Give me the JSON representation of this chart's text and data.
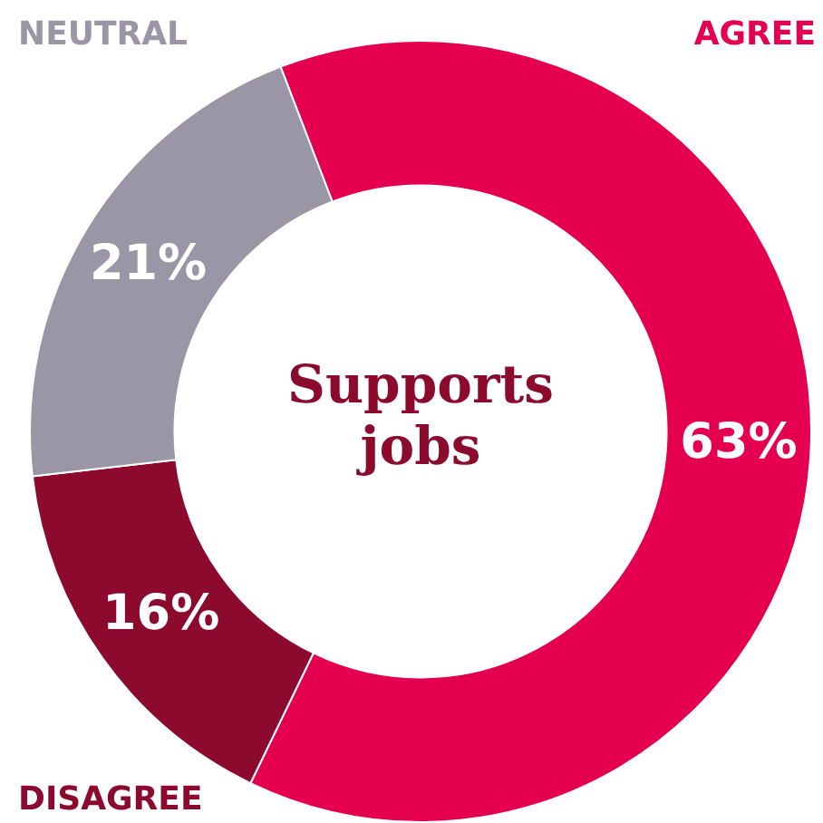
{
  "chart_data": {
    "type": "donut",
    "title": "Supports jobs",
    "categories": [
      "AGREE",
      "DISAGREE",
      "NEUTRAL"
    ],
    "values": [
      63,
      16,
      21
    ],
    "colors": [
      "#e4004f",
      "#8c0a2e",
      "#9a96a6"
    ],
    "value_labels": [
      "63%",
      "16%",
      "21%"
    ]
  }
}
